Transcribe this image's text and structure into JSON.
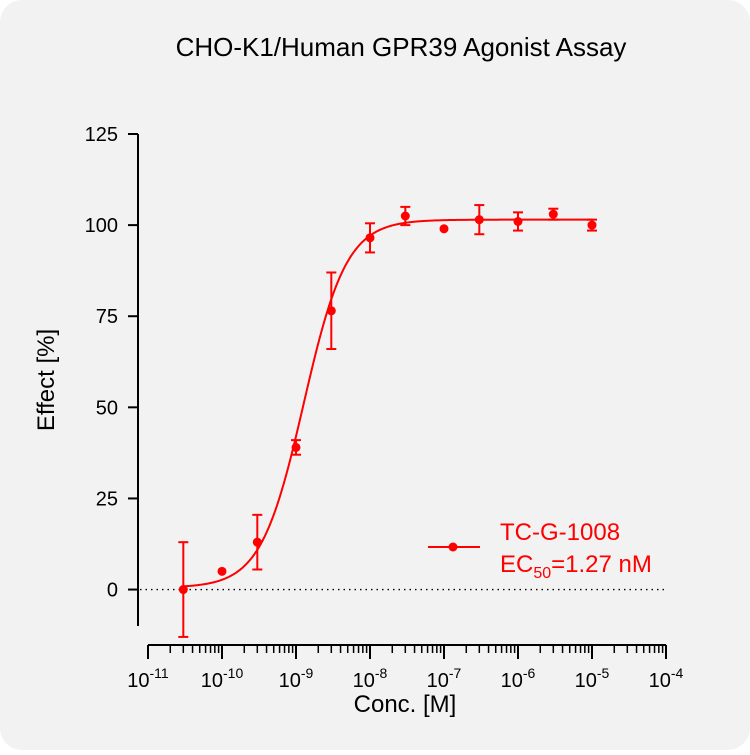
{
  "chart_data": {
    "type": "scatter",
    "title": "CHO-K1/Human GPR39 Agonist Assay",
    "xlabel": "Conc. [M]",
    "ylabel": "Effect  [%]",
    "x_scale": "log",
    "xlim": [
      1e-11,
      0.0001
    ],
    "ylim": [
      -10,
      125
    ],
    "x_ticks": [
      {
        "base": "10",
        "exp": "-11",
        "value": 1e-11
      },
      {
        "base": "10",
        "exp": "-10",
        "value": 1e-10
      },
      {
        "base": "10",
        "exp": "-9",
        "value": 1e-09
      },
      {
        "base": "10",
        "exp": "-8",
        "value": 1e-08
      },
      {
        "base": "10",
        "exp": "-7",
        "value": 1e-07
      },
      {
        "base": "10",
        "exp": "-6",
        "value": 1e-06
      },
      {
        "base": "10",
        "exp": "-5",
        "value": 1e-05
      },
      {
        "base": "10",
        "exp": "-4",
        "value": 0.0001
      }
    ],
    "y_ticks": [
      0,
      25,
      50,
      75,
      100,
      125
    ],
    "baseline": 0,
    "series": [
      {
        "name": "TC-G-1008",
        "color": "#ff0000",
        "points": [
          {
            "x": 3e-11,
            "y": 0,
            "err": 13
          },
          {
            "x": 1e-10,
            "y": 5,
            "err": 0
          },
          {
            "x": 3e-10,
            "y": 13,
            "err": 7.5
          },
          {
            "x": 1e-09,
            "y": 39,
            "err": 2
          },
          {
            "x": 3e-09,
            "y": 76.5,
            "err": 10.5
          },
          {
            "x": 1e-08,
            "y": 96.5,
            "err": 4
          },
          {
            "x": 3e-08,
            "y": 102.5,
            "err": 2.5
          },
          {
            "x": 1e-07,
            "y": 99,
            "err": 0
          },
          {
            "x": 3e-07,
            "y": 101.5,
            "err": 4
          },
          {
            "x": 1e-06,
            "y": 101,
            "err": 2.5
          },
          {
            "x": 3e-06,
            "y": 103,
            "err": 1.5
          },
          {
            "x": 1e-05,
            "y": 100,
            "err": 1.5
          }
        ],
        "fit": {
          "bottom": 0.5,
          "top": 101.5,
          "ec50": 1.27e-09,
          "hill": 1.5,
          "x_range": [
            3e-11,
            1e-05
          ]
        }
      }
    ],
    "legend": {
      "placement": "bottom-right",
      "label": "TC-G-1008",
      "ec50_prefix": "EC",
      "ec50_sub": "50",
      "ec50_suffix": "=1.27 nM"
    }
  }
}
